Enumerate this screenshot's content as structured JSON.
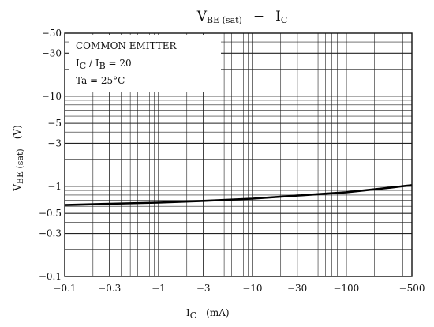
{
  "chart_data": {
    "type": "line",
    "title": {
      "main": "V",
      "main_sub": "BE (sat)",
      "dash": "−",
      "var": "I",
      "var_sub": "C"
    },
    "xlabel": {
      "main": "I",
      "sub": "C",
      "unit": "(mA)"
    },
    "ylabel": {
      "main": "V",
      "sub": "BE (sat)",
      "unit": "(V)"
    },
    "x_scale": "log",
    "y_scale": "log",
    "xlim": [
      0.1,
      500
    ],
    "ylim": [
      0.1,
      50
    ],
    "x_ticks": [
      {
        "value": 0.1,
        "label": "−0.1"
      },
      {
        "value": 0.3,
        "label": "−0.3"
      },
      {
        "value": 1,
        "label": "−1"
      },
      {
        "value": 3,
        "label": "−3"
      },
      {
        "value": 10,
        "label": "−10"
      },
      {
        "value": 30,
        "label": "−30"
      },
      {
        "value": 100,
        "label": "−100"
      },
      {
        "value": 500,
        "label": "−500"
      }
    ],
    "y_ticks": [
      {
        "value": 0.1,
        "label": "−0.1"
      },
      {
        "value": 0.3,
        "label": "−0.3"
      },
      {
        "value": 0.5,
        "label": "−0.5"
      },
      {
        "value": 1,
        "label": "−1"
      },
      {
        "value": 3,
        "label": "−3"
      },
      {
        "value": 5,
        "label": "−5"
      },
      {
        "value": 10,
        "label": "−10"
      },
      {
        "value": 30,
        "label": "−30"
      },
      {
        "value": 50,
        "label": "−50"
      }
    ],
    "grid": true,
    "annotation": {
      "line1": "COMMON EMITTER",
      "line2": {
        "a": "I",
        "a_sub": "C",
        "mid": " / I",
        "b_sub": "B",
        "rest": " = 20"
      },
      "line3": "Ta = 25°C"
    },
    "series": [
      {
        "x": [
          0.1,
          0.3,
          1,
          3,
          10,
          30,
          100,
          300,
          500
        ],
        "y": [
          0.62,
          0.64,
          0.66,
          0.69,
          0.73,
          0.79,
          0.86,
          0.97,
          1.03
        ]
      }
    ]
  }
}
